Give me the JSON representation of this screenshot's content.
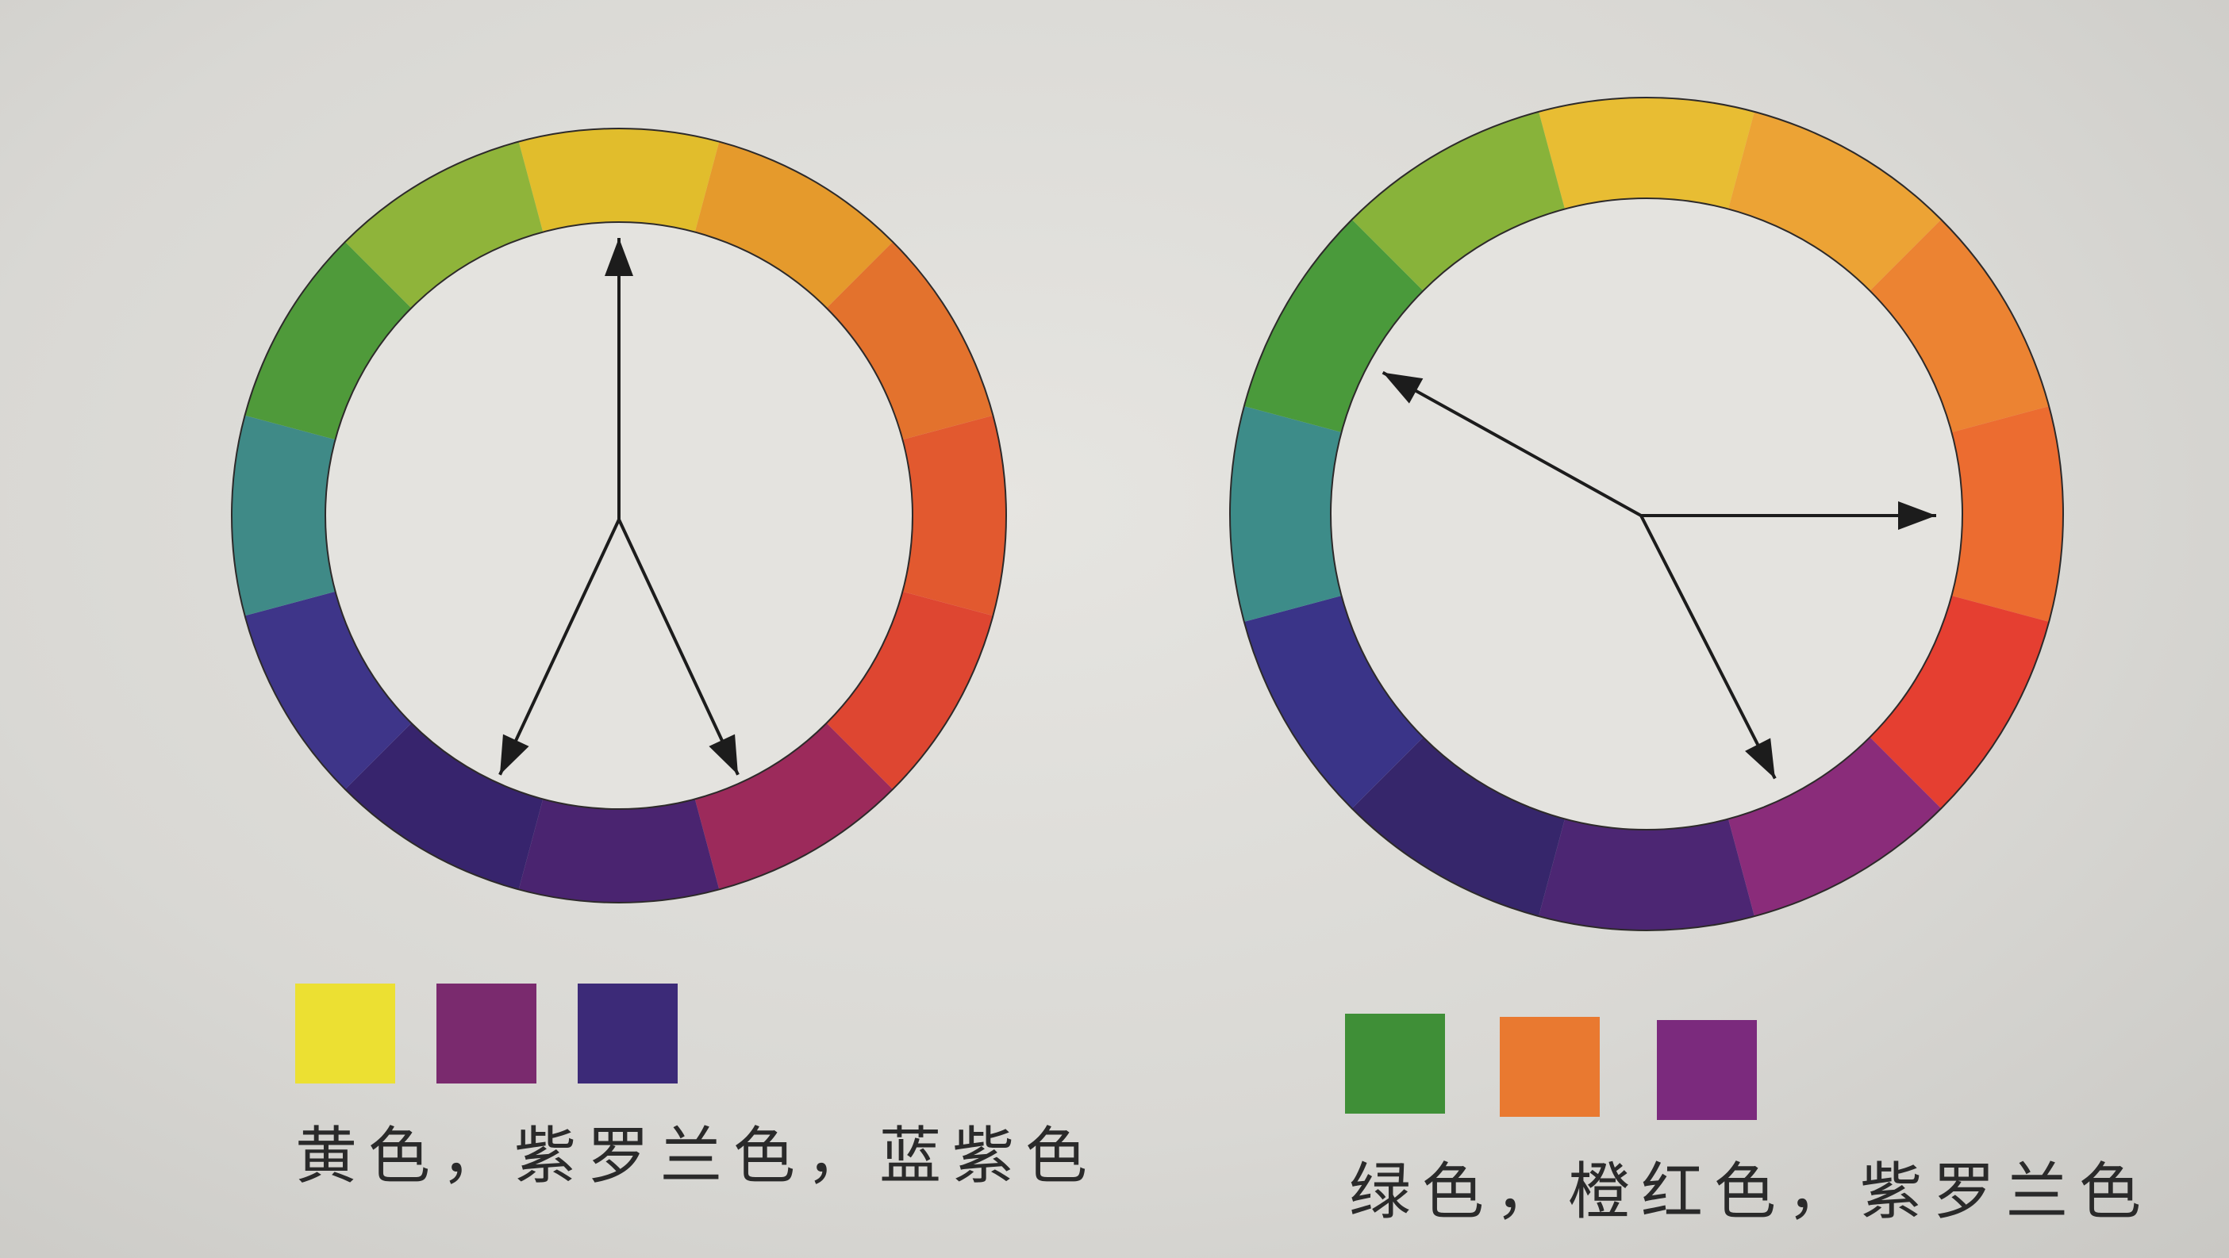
{
  "left_scheme": {
    "segments": [
      "#e1bd2c",
      "#e59a2c",
      "#e3722d",
      "#e2592f",
      "#de4631",
      "#9c2a5b",
      "#4a2470",
      "#37246d",
      "#3e3589",
      "#3f8a87",
      "#4f9a3a",
      "#8fb43a"
    ],
    "arrow_targets_deg": [
      0,
      155,
      205
    ],
    "swatches": [
      "#ece032",
      "#7a2a6e",
      "#3c2a78"
    ],
    "caption": "黄色，紫罗兰色，蓝紫色"
  },
  "right_scheme": {
    "segments": [
      "#e8bd33",
      "#eca335",
      "#ec8332",
      "#ec6c30",
      "#e53f31",
      "#8a2c7a",
      "#4c2673",
      "#36266b",
      "#3a3488",
      "#3d8c89",
      "#4a9a3b",
      "#88b33a"
    ],
    "arrow_targets_deg": [
      -61,
      90,
      153
    ],
    "swatches": [
      "#3f8f37",
      "#e97930",
      "#7b2a7d"
    ],
    "caption": "绿色，橙红色，紫罗兰色"
  }
}
